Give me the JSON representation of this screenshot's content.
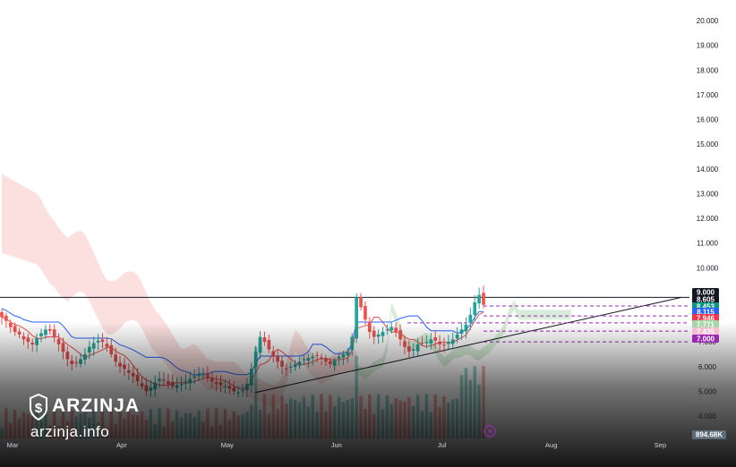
{
  "brand": {
    "name": "ARZINJA",
    "url": "arzinja.info"
  },
  "colors": {
    "up": "#26a69a",
    "down": "#ef5350",
    "tenkan": "#ef5350",
    "kijun": "#2962ff",
    "cloud_bear": "#f7c6c5",
    "cloud_bull": "#c8e6c9",
    "dashed": "#9c27b0"
  },
  "chart_data": {
    "type": "candlestick",
    "y_ticks": [
      "20.000",
      "19.000",
      "18.000",
      "17.000",
      "16.000",
      "15.000",
      "14.000",
      "13.000",
      "12.000",
      "11.000",
      "10.000",
      "9.000",
      "8.000",
      "7.000",
      "6.000",
      "5.000",
      "4.000"
    ],
    "y_tick_values": [
      20,
      19,
      18,
      17,
      16,
      15,
      14,
      13,
      12,
      11,
      10,
      9,
      8,
      7,
      6,
      5,
      4
    ],
    "ylim": [
      3.3,
      20.8
    ],
    "x_labels": [
      {
        "label": "Mar",
        "day": 0
      },
      {
        "label": "Apr",
        "day": 31
      },
      {
        "label": "May",
        "day": 61
      },
      {
        "label": "Jun",
        "day": 92
      },
      {
        "label": "Jul",
        "day": 122
      },
      {
        "label": "Aug",
        "day": 153
      },
      {
        "label": "Sep",
        "day": 184
      }
    ],
    "horizontal_line": 8.8,
    "trendline": {
      "from": {
        "day": 69,
        "price": 4.95
      },
      "to": {
        "day": 190,
        "price": 8.8
      }
    },
    "dashed_levels": [
      8.453,
      8.05,
      7.771,
      7.435,
      7.0
    ],
    "price_badges": [
      {
        "text": "9.000",
        "color": "#131722"
      },
      {
        "text": "8.605",
        "color": "#131722"
      },
      {
        "text": "8.453",
        "color": "#089981"
      },
      {
        "text": "8.115",
        "color": "#2962ff"
      },
      {
        "text": "7.946",
        "color": "#f23645"
      },
      {
        "text": "7.771",
        "color": "#a5d6a7"
      },
      {
        "text": "7.435",
        "color": "#f8bbd0"
      },
      {
        "text": "7.000",
        "color": "#9c27b0"
      }
    ],
    "volume_badge": "894.68K",
    "series": [
      {
        "name": "close",
        "values": [
          8.0,
          7.85,
          7.6,
          7.4,
          7.3,
          7.1,
          7.0,
          6.9,
          7.15,
          7.35,
          7.5,
          7.45,
          7.2,
          6.9,
          6.6,
          6.3,
          6.1,
          6.15,
          6.3,
          6.5,
          6.8,
          6.95,
          7.05,
          7.0,
          6.8,
          6.5,
          6.2,
          6.0,
          5.9,
          5.75,
          5.6,
          5.4,
          5.2,
          5.0,
          5.15,
          5.35,
          5.5,
          5.45,
          5.3,
          5.2,
          5.25,
          5.3,
          5.4,
          5.5,
          5.6,
          5.7,
          5.65,
          5.55,
          5.4,
          5.3,
          5.25,
          5.2,
          5.1,
          5.0,
          4.95,
          5.05,
          5.3,
          5.9,
          6.6,
          7.2,
          7.0,
          6.7,
          6.4,
          6.2,
          6.0,
          5.9,
          6.0,
          6.1,
          6.2,
          6.3,
          6.35,
          6.4,
          6.45,
          6.3,
          6.2,
          6.1,
          6.25,
          6.4,
          6.5,
          6.6,
          7.2,
          8.8,
          8.4,
          7.9,
          7.4,
          7.2,
          7.3,
          7.4,
          7.5,
          7.6,
          7.4,
          7.1,
          6.8,
          6.6,
          6.7,
          6.9,
          6.95,
          7.0,
          7.1,
          7.05,
          6.9,
          6.85,
          7.0,
          7.1,
          7.3,
          7.5,
          7.7,
          8.1,
          8.6,
          8.9,
          8.5
        ]
      }
    ]
  }
}
